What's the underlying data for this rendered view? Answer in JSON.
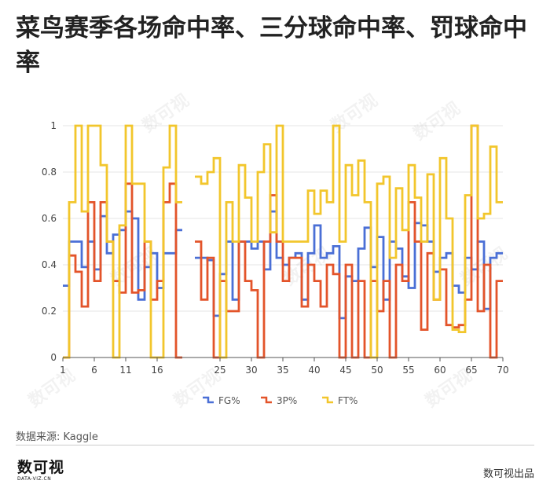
{
  "title": "菜鸟赛季各场命中率、三分球命中率、罚球命中率",
  "source": "数据来源: Kaggle",
  "brand": "数可视出品",
  "logo": {
    "main": "数可视",
    "sub": "DATA-VIZ.CN"
  },
  "colors": {
    "FG%": "#4a6fd6",
    "3P%": "#e3542a",
    "FT%": "#f2c62c",
    "grid": "#e6e6e6",
    "axis": "#555555"
  },
  "chart_data": {
    "type": "line",
    "step": true,
    "x_tick_labels": [
      "1",
      "6",
      "11",
      "16",
      "25",
      "30",
      "35",
      "40",
      "45",
      "50",
      "55",
      "60",
      "65",
      "70"
    ],
    "x_tick_values": [
      1,
      6,
      11,
      16,
      26,
      31,
      36,
      41,
      46,
      51,
      56,
      61,
      66,
      71
    ],
    "xlim": [
      1,
      71
    ],
    "ylim": [
      0,
      1
    ],
    "y_ticks": [
      0,
      0.2,
      0.4,
      0.6,
      0.8,
      1
    ],
    "y_tick_labels": [
      "0",
      "0.2",
      "0.4",
      "0.6",
      "0.8",
      "1"
    ],
    "grid": true,
    "legend_position": "bottom",
    "x": [
      1,
      2,
      3,
      4,
      5,
      6,
      7,
      8,
      9,
      10,
      11,
      12,
      13,
      14,
      15,
      16,
      17,
      18,
      19,
      20,
      21,
      22,
      23,
      24,
      25,
      26,
      27,
      28,
      29,
      30,
      31,
      32,
      33,
      34,
      35,
      36,
      37,
      38,
      39,
      40,
      41,
      42,
      43,
      44,
      45,
      46,
      47,
      48,
      49,
      50,
      51,
      52,
      53,
      54,
      55,
      56,
      57,
      58,
      59,
      60,
      61,
      62,
      63,
      64,
      65,
      66,
      67,
      68,
      69,
      70
    ],
    "series": [
      {
        "name": "FG%",
        "values": [
          0.31,
          0.5,
          0.5,
          0.39,
          0.5,
          0.38,
          0.61,
          0.45,
          0.53,
          0.55,
          0.63,
          0.6,
          0.25,
          0.39,
          0.45,
          0.3,
          0.45,
          0.45,
          0.55,
          null,
          null,
          0.43,
          0.43,
          0.42,
          0.18,
          0.36,
          0.5,
          0.25,
          0.5,
          0.5,
          0.47,
          0.5,
          0.38,
          0.63,
          0.43,
          0.4,
          0.43,
          0.45,
          0.25,
          0.45,
          0.57,
          0.43,
          0.45,
          0.48,
          0.17,
          0.35,
          0.33,
          0.47,
          0.56,
          0.39,
          0.52,
          0.25,
          0.5,
          0.47,
          0.35,
          0.3,
          0.58,
          0.57,
          0.5,
          0.37,
          0.43,
          0.45,
          0.31,
          0.28,
          0.43,
          0.38,
          0.5,
          0.21,
          0.43,
          0.45
        ]
      },
      {
        "name": "3P%",
        "values": [
          0.0,
          0.44,
          0.37,
          0.22,
          0.67,
          0.33,
          0.67,
          0.5,
          0.33,
          0.28,
          0.75,
          0.28,
          0.29,
          0.5,
          0.25,
          0.33,
          0.67,
          0.75,
          0.0,
          null,
          null,
          0.5,
          0.25,
          0.43,
          0.0,
          0.33,
          0.2,
          0.2,
          0.5,
          0.33,
          0.29,
          0.0,
          0.5,
          0.7,
          0.5,
          0.33,
          0.43,
          0.43,
          0.22,
          0.4,
          0.33,
          0.22,
          0.4,
          0.36,
          0.0,
          0.4,
          0.0,
          0.33,
          0.0,
          0.33,
          0.2,
          0.33,
          0.0,
          0.4,
          0.33,
          0.67,
          0.5,
          0.12,
          0.45,
          0.25,
          0.38,
          0.14,
          0.13,
          0.14,
          0.25,
          1.0,
          0.2,
          0.4,
          0.0,
          0.33
        ]
      },
      {
        "name": "FT%",
        "values": [
          0.0,
          0.67,
          1.0,
          0.63,
          1.0,
          1.0,
          0.83,
          0.5,
          0.0,
          0.57,
          1.0,
          0.75,
          0.75,
          0.5,
          0.0,
          0.0,
          0.82,
          1.0,
          0.67,
          null,
          null,
          0.78,
          0.75,
          0.8,
          0.86,
          0.0,
          0.67,
          0.5,
          0.83,
          0.69,
          0.5,
          0.8,
          0.92,
          0.54,
          1.0,
          0.5,
          0.5,
          0.5,
          0.5,
          0.72,
          0.62,
          0.72,
          0.67,
          1.0,
          0.5,
          0.83,
          0.7,
          0.85,
          0.67,
          0.0,
          0.75,
          0.78,
          0.43,
          0.73,
          0.55,
          0.83,
          0.69,
          0.5,
          0.79,
          0.25,
          0.86,
          0.6,
          0.12,
          0.11,
          0.7,
          1.0,
          0.6,
          0.62,
          0.91,
          0.67
        ]
      }
    ]
  }
}
